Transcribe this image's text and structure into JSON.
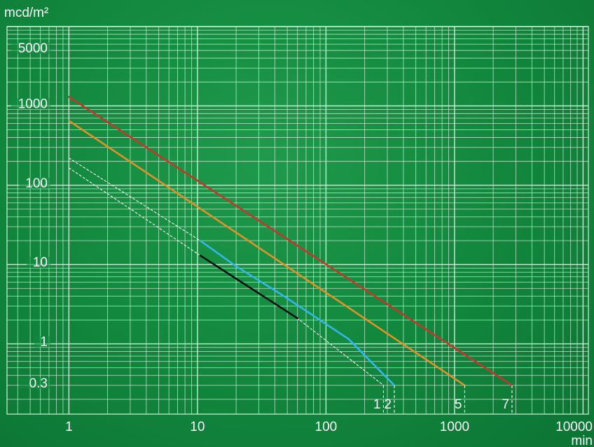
{
  "colors": {
    "background": "#138a3f",
    "grid": "#d8f0dd",
    "axis_text": "#ffffff"
  },
  "chart_data": {
    "type": "line",
    "title": "",
    "ylabel": "mcd/m²",
    "xlabel": "min",
    "xscale": "log",
    "yscale": "log",
    "xlim": [
      0.33,
      11000
    ],
    "ylim": [
      0.13,
      10000
    ],
    "grid": true,
    "x_ticks": [
      {
        "value": 1,
        "label": "1"
      },
      {
        "value": 10,
        "label": "10"
      },
      {
        "value": 100,
        "label": "100"
      },
      {
        "value": 1000,
        "label": "1000"
      },
      {
        "value": 10000,
        "label": "10000"
      }
    ],
    "y_ticks": [
      {
        "value": 0.3,
        "label": "0.3"
      },
      {
        "value": 1,
        "label": "1"
      },
      {
        "value": 10,
        "label": "10"
      },
      {
        "value": 100,
        "label": "100"
      },
      {
        "value": 1000,
        "label": "1000"
      },
      {
        "value": 5000,
        "label": "5000"
      }
    ],
    "series": [
      {
        "name": "7",
        "color": "#c0392b",
        "style": "solid",
        "x": [
          1,
          2800
        ],
        "y": [
          1300,
          0.3
        ],
        "end_x": 2800
      },
      {
        "name": "5",
        "color": "#e0922a",
        "style": "solid",
        "x": [
          1,
          1200
        ],
        "y": [
          650,
          0.3
        ],
        "end_x": 1200
      },
      {
        "name": "2",
        "color": "#ffffff",
        "style": "dashed",
        "x": [
          1,
          10.5
        ],
        "y": [
          220,
          20
        ],
        "end_x": 340
      },
      {
        "name": "2",
        "color": "#35b6ea",
        "style": "solid",
        "x": [
          10.5,
          20,
          45,
          150,
          340
        ],
        "y": [
          20,
          9.5,
          4.2,
          1.15,
          0.3
        ],
        "end_x": 340
      },
      {
        "name": "1",
        "color": "#ffffff",
        "style": "dashed",
        "x": [
          1,
          10.5,
          60,
          280
        ],
        "y": [
          165,
          13,
          2.1,
          0.3
        ],
        "end_x": 280
      },
      {
        "name": "1",
        "color": "#111111",
        "style": "solid",
        "x": [
          10.5,
          60
        ],
        "y": [
          13,
          2.1
        ],
        "end_x": 280
      }
    ],
    "end_markers": [
      {
        "label": "1",
        "x": 280
      },
      {
        "label": "2",
        "x": 340
      },
      {
        "label": "5",
        "x": 1200
      },
      {
        "label": "7",
        "x": 2800
      }
    ]
  }
}
